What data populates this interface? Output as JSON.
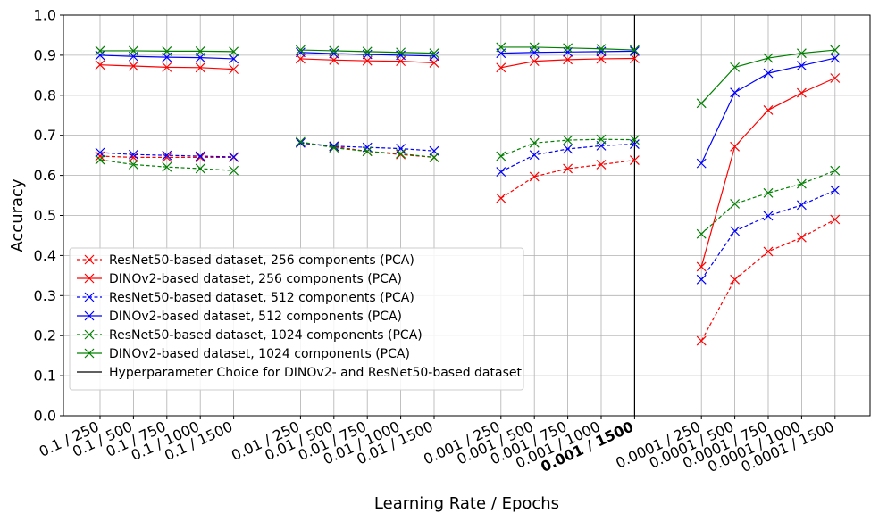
{
  "chart_data": {
    "type": "line",
    "xlabel": "Learning Rate / Epochs",
    "ylabel": "Accuracy",
    "ylim": [
      0.0,
      1.0
    ],
    "yticks": [
      "0.0",
      "0.1",
      "0.2",
      "0.3",
      "0.4",
      "0.5",
      "0.6",
      "0.7",
      "0.8",
      "0.9",
      "1.0"
    ],
    "grid": true,
    "legend_position": "lower-left",
    "groups": [
      {
        "learning_rate": "0.1",
        "categories": [
          "0.1 / 250",
          "0.1 / 500",
          "0.1 / 750",
          "0.1 / 1000",
          "0.1 / 1500"
        ]
      },
      {
        "learning_rate": "0.01",
        "categories": [
          "0.01 / 250",
          "0.01 / 500",
          "0.01 / 750",
          "0.01 / 1000",
          "0.01 / 1500"
        ]
      },
      {
        "learning_rate": "0.001",
        "categories": [
          "0.001 / 250",
          "0.001 / 500",
          "0.001 / 750",
          "0.001 / 1000",
          "0.001 / 1500"
        ]
      },
      {
        "learning_rate": "0.0001",
        "categories": [
          "0.0001 / 250",
          "0.0001 / 500",
          "0.0001 / 750",
          "0.0001 / 1000",
          "0.0001 / 1500"
        ]
      }
    ],
    "highlighted_category": "0.001 / 1500",
    "series": [
      {
        "name": "ResNet50-based dataset, 256 components (PCA)",
        "color": "#ff0000",
        "dashed": true,
        "values": [
          [
            0.648,
            0.645,
            0.645,
            0.645,
            0.645
          ],
          [
            0.681,
            0.672,
            0.66,
            0.652,
            0.645
          ],
          [
            0.543,
            0.597,
            0.617,
            0.627,
            0.638
          ],
          [
            0.187,
            0.34,
            0.41,
            0.445,
            0.49
          ]
        ]
      },
      {
        "name": "DINOv2-based dataset, 256 components (PCA)",
        "color": "#ff0000",
        "dashed": false,
        "values": [
          [
            0.876,
            0.873,
            0.87,
            0.869,
            0.865
          ],
          [
            0.891,
            0.888,
            0.886,
            0.885,
            0.881
          ],
          [
            0.869,
            0.885,
            0.889,
            0.891,
            0.892
          ],
          [
            0.372,
            0.672,
            0.763,
            0.806,
            0.843
          ]
        ]
      },
      {
        "name": "ResNet50-based dataset, 512 components (PCA)",
        "color": "#0000ff",
        "dashed": true,
        "values": [
          [
            0.657,
            0.652,
            0.65,
            0.648,
            0.646
          ],
          [
            0.681,
            0.673,
            0.67,
            0.667,
            0.661
          ],
          [
            0.609,
            0.651,
            0.666,
            0.674,
            0.678
          ],
          [
            0.34,
            0.461,
            0.499,
            0.526,
            0.563
          ]
        ]
      },
      {
        "name": "DINOv2-based dataset, 512 components (PCA)",
        "color": "#0000ff",
        "dashed": false,
        "values": [
          [
            0.9,
            0.897,
            0.895,
            0.894,
            0.891
          ],
          [
            0.907,
            0.904,
            0.902,
            0.9,
            0.898
          ],
          [
            0.905,
            0.907,
            0.908,
            0.909,
            0.91
          ],
          [
            0.63,
            0.807,
            0.855,
            0.874,
            0.893
          ]
        ]
      },
      {
        "name": "ResNet50-based dataset, 1024 components (PCA)",
        "color": "#008000",
        "dashed": true,
        "values": [
          [
            0.639,
            0.627,
            0.621,
            0.617,
            0.612
          ],
          [
            0.684,
            0.669,
            0.66,
            0.654,
            0.645
          ],
          [
            0.648,
            0.681,
            0.688,
            0.69,
            0.689
          ],
          [
            0.454,
            0.529,
            0.556,
            0.579,
            0.612
          ]
        ]
      },
      {
        "name": "DINOv2-based dataset, 1024 components (PCA)",
        "color": "#008000",
        "dashed": false,
        "values": [
          [
            0.911,
            0.911,
            0.91,
            0.91,
            0.909
          ],
          [
            0.913,
            0.911,
            0.909,
            0.907,
            0.905
          ],
          [
            0.92,
            0.92,
            0.918,
            0.916,
            0.913
          ],
          [
            0.78,
            0.87,
            0.893,
            0.905,
            0.913
          ]
        ]
      }
    ],
    "reference_line": {
      "name": "Hyperparameter Choice for DINOv2- and ResNet50-based dataset",
      "color": "#000000",
      "at_category": "0.001 / 1500"
    }
  }
}
